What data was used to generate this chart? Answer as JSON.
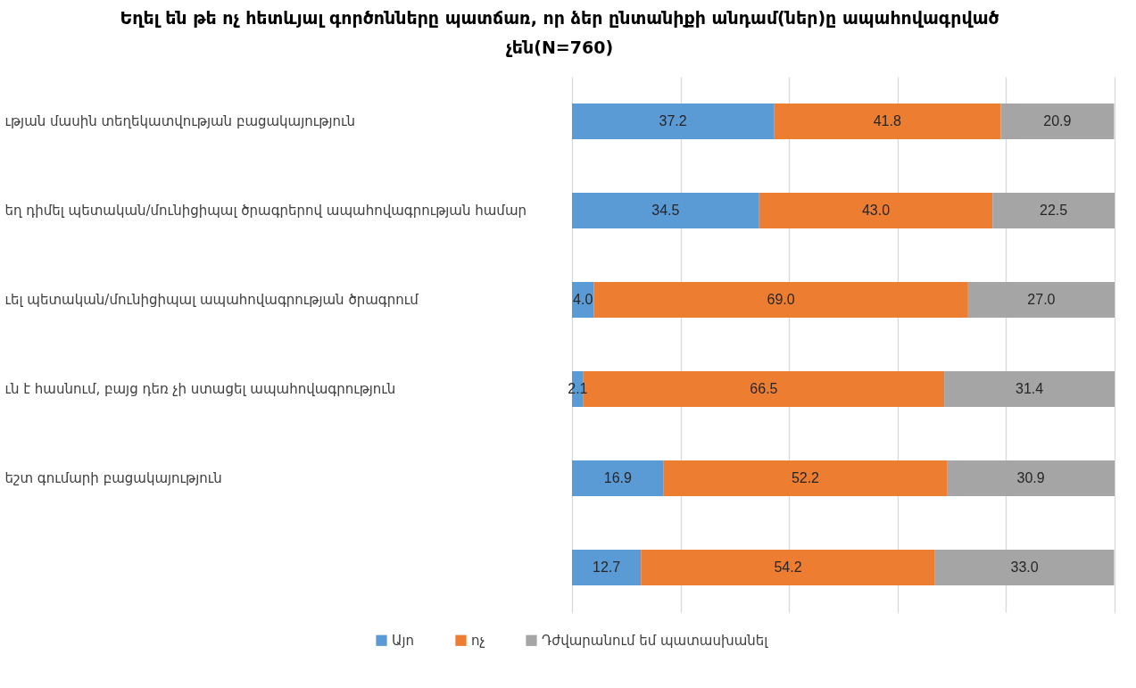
{
  "chart_data": {
    "type": "bar",
    "orientation": "horizontal",
    "stacked": true,
    "title": "Եղել են թե ոչ հետևյալ գործոնները պատճառ, որ ձեր ընտանիքի անդամ(ներ)ը ապահովագրված չեն(N=760)",
    "categories": [
      "ւթյան մասին տեղեկատվության բացակայություն",
      "եղ դիմել պետական/մունիցիպալ ծրագրերով ապահովագրության համար",
      "ւել պետական/մունիցիպալ ապահովագրության ծրագրում",
      "ւն է հասնում, բայց դեռ չի ստացել ապահովագրություն",
      "եշտ գումարի բացակայություն",
      null
    ],
    "series": [
      {
        "name": "Այո",
        "color": "#5b9bd5",
        "values": [
          37.2,
          34.5,
          4.0,
          2.1,
          16.9,
          12.7
        ],
        "value_labels": [
          "37.2",
          "34.5",
          "4.0",
          "2.1",
          "16.9",
          "12.7"
        ]
      },
      {
        "name": "ոչ",
        "color": "#ed7d31",
        "values": [
          41.8,
          43.0,
          69.0,
          66.5,
          52.2,
          54.2
        ],
        "value_labels": [
          "41.8",
          "43.0",
          "69.0",
          "66.5",
          "52.2",
          "54.2"
        ]
      },
      {
        "name": "Դժվարանում եմ պատասխանել",
        "color": "#a5a5a5",
        "values": [
          20.9,
          22.5,
          27.0,
          31.4,
          30.9,
          33.0
        ],
        "value_labels": [
          "20.9",
          "22.5",
          "27.0",
          "31.4",
          "30.9",
          "33.0"
        ]
      }
    ],
    "xlim": [
      0,
      100
    ],
    "xticks": [
      {
        "value": 0,
        "label": null
      },
      {
        "value": 20,
        "label": null
      },
      {
        "value": 40,
        "label": null
      },
      {
        "value": 60,
        "label": null
      },
      {
        "value": 80,
        "label": null
      },
      {
        "value": 100,
        "label": null
      }
    ],
    "grid": "x",
    "legend": "bottom",
    "tick_labels": "y"
  }
}
